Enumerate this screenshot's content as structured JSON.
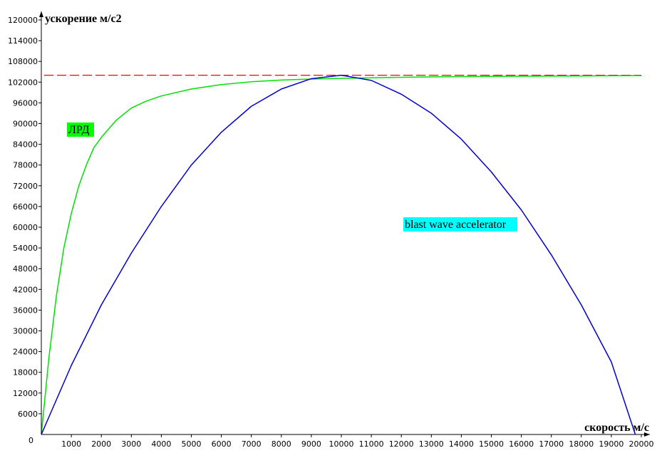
{
  "chart_data": {
    "type": "line",
    "xlabel": "скорость м/с",
    "ylabel": "ускорение м/с2",
    "xlim": [
      0,
      20000
    ],
    "ylim": [
      0,
      120000
    ],
    "x_ticks": [
      0,
      1000,
      2000,
      3000,
      4000,
      5000,
      6000,
      7000,
      8000,
      9000,
      10000,
      11000,
      12000,
      13000,
      14000,
      15000,
      16000,
      17000,
      18000,
      19000,
      20000
    ],
    "y_ticks": [
      6000,
      12000,
      18000,
      24000,
      30000,
      36000,
      42000,
      48000,
      54000,
      60000,
      66000,
      72000,
      78000,
      84000,
      90000,
      96000,
      102000,
      108000,
      114000,
      120000
    ],
    "x_tick_labels": [
      "0",
      "1000",
      "2000",
      "3000",
      "4000",
      "5000",
      "6000",
      "7000",
      "8000",
      "9000",
      "10000",
      "11000",
      "12000",
      "13000",
      "14000",
      "15000",
      "16000",
      "17000",
      "18000",
      "19000",
      "20000"
    ],
    "y_tick_labels": [
      "6000",
      "12000",
      "18000",
      "24000",
      "30000",
      "36000",
      "42000",
      "48000",
      "54000",
      "60000",
      "66000",
      "72000",
      "78000",
      "84000",
      "90000",
      "96000",
      "102000",
      "108000",
      "114000",
      "120000"
    ],
    "grid": false,
    "reference_line": {
      "y": 104000,
      "style": "dashed",
      "color": "#ff0000"
    },
    "series": [
      {
        "name": "ЛРД",
        "color": "#00e000",
        "label_bg": "#00ff00",
        "x": [
          0,
          250,
          500,
          750,
          1000,
          1250,
          1500,
          1750,
          2000,
          2500,
          3000,
          3500,
          4000,
          5000,
          6000,
          7000,
          8000,
          9000,
          10000,
          12000,
          14000,
          16000,
          18000,
          20000
        ],
        "y": [
          0,
          22000,
          40000,
          54000,
          64000,
          72000,
          78000,
          83000,
          86000,
          91000,
          94500,
          96500,
          98000,
          100000,
          101300,
          102100,
          102600,
          102900,
          103100,
          103400,
          103600,
          103700,
          103800,
          103900
        ]
      },
      {
        "name": "blast wave accelerator",
        "color": "#0000cc",
        "label_bg": "#00ffff",
        "x": [
          0,
          1000,
          2000,
          3000,
          4000,
          5000,
          6000,
          7000,
          8000,
          9000,
          10000,
          11000,
          12000,
          13000,
          14000,
          15000,
          16000,
          17000,
          18000,
          19000,
          19800
        ],
        "y": [
          0,
          20000,
          37500,
          52500,
          66000,
          78000,
          87500,
          95000,
          100000,
          103000,
          104000,
          102500,
          98500,
          93000,
          85500,
          76000,
          65000,
          52000,
          37500,
          21000,
          0
        ]
      }
    ]
  }
}
